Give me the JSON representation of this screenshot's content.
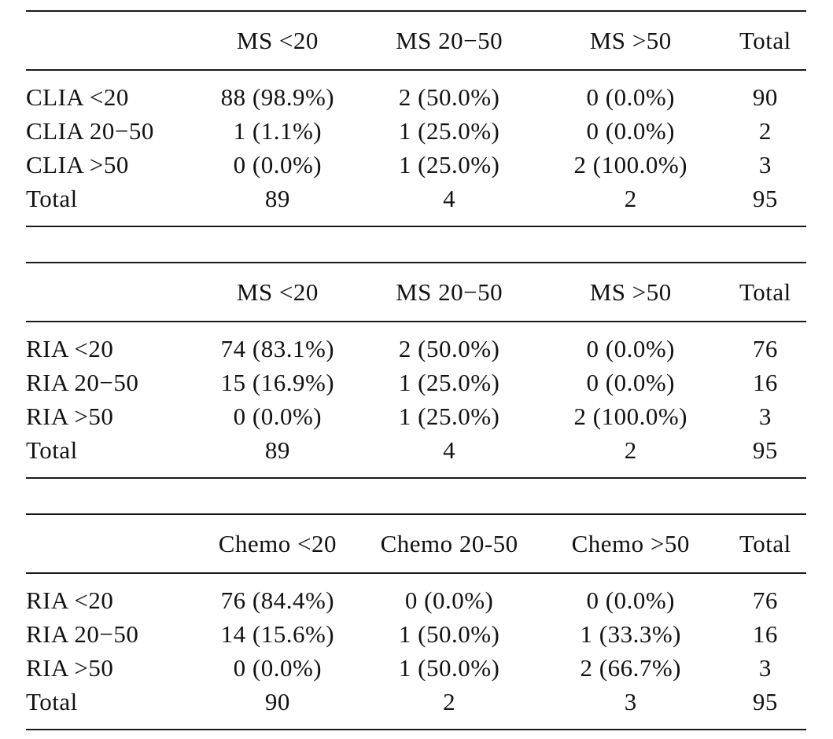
{
  "page": {
    "background_color": "#ffffff",
    "rule_color": "#1a1a1a",
    "text_color": "#121212"
  },
  "tables": [
    {
      "name": "clia-vs-ms",
      "columns": [
        "",
        "MS <20",
        "MS 20−50",
        "MS >50",
        "Total"
      ],
      "rows": [
        [
          "CLIA <20",
          "88 (98.9%)",
          "2 (50.0%)",
          "0 (0.0%)",
          "90"
        ],
        [
          "CLIA 20−50",
          "1 (1.1%)",
          "1 (25.0%)",
          "0 (0.0%)",
          "2"
        ],
        [
          "CLIA >50",
          "0 (0.0%)",
          "1 (25.0%)",
          "2 (100.0%)",
          "3"
        ],
        [
          "Total",
          "89",
          "4",
          "2",
          "95"
        ]
      ]
    },
    {
      "name": "ria-vs-ms",
      "columns": [
        "",
        "MS <20",
        "MS 20−50",
        "MS >50",
        "Total"
      ],
      "rows": [
        [
          "RIA <20",
          "74 (83.1%)",
          "2 (50.0%)",
          "0 (0.0%)",
          "76"
        ],
        [
          "RIA 20−50",
          "15 (16.9%)",
          "1 (25.0%)",
          "0 (0.0%)",
          "16"
        ],
        [
          "RIA >50",
          "0 (0.0%)",
          "1 (25.0%)",
          "2 (100.0%)",
          "3"
        ],
        [
          "Total",
          "89",
          "4",
          "2",
          "95"
        ]
      ]
    },
    {
      "name": "ria-vs-chemo",
      "columns": [
        "",
        "Chemo <20",
        "Chemo 20-50",
        "Chemo >50",
        "Total"
      ],
      "rows": [
        [
          "RIA <20",
          "76 (84.4%)",
          "0 (0.0%)",
          "0 (0.0%)",
          "76"
        ],
        [
          "RIA 20−50",
          "14 (15.6%)",
          "1 (50.0%)",
          "1 (33.3%)",
          "16"
        ],
        [
          "RIA >50",
          "0 (0.0%)",
          "1 (50.0%)",
          "2 (66.7%)",
          "3"
        ],
        [
          "Total",
          "90",
          "2",
          "3",
          "95"
        ]
      ]
    }
  ]
}
